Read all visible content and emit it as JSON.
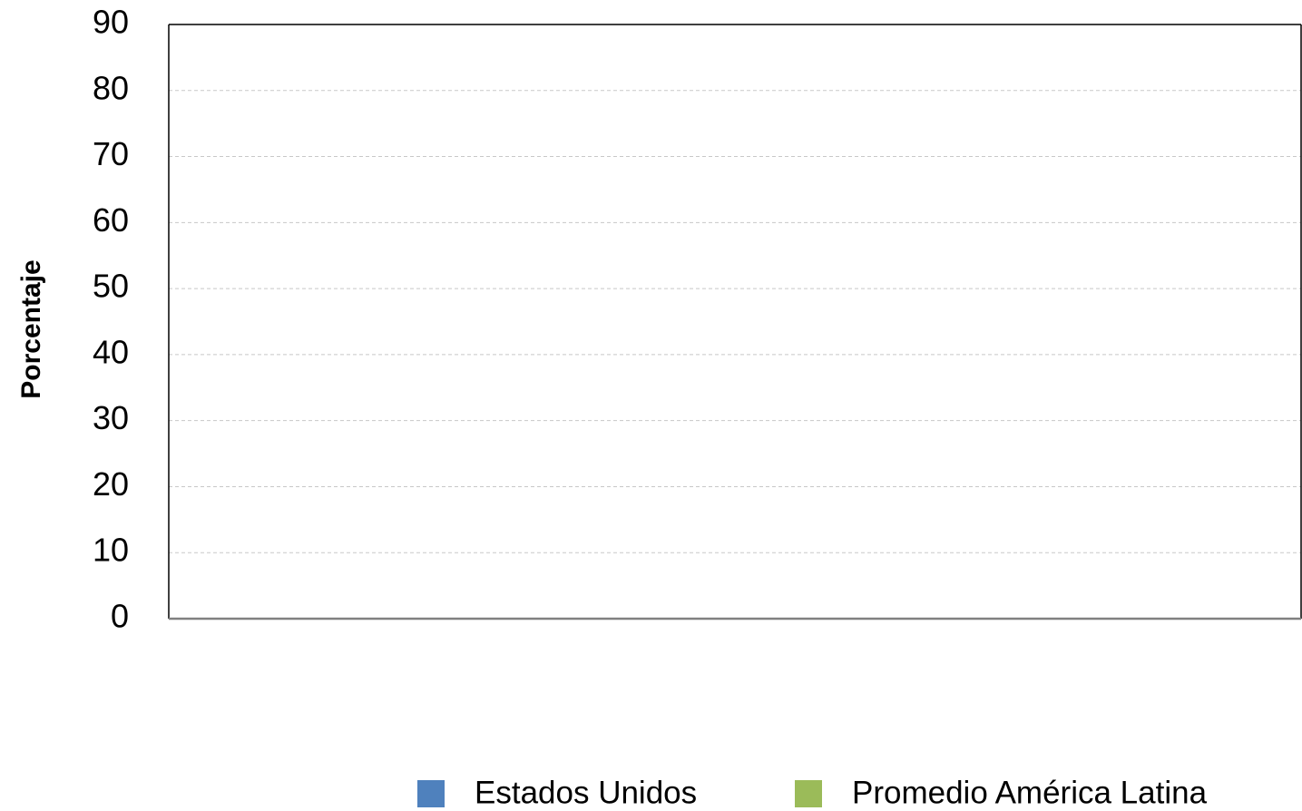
{
  "chart_data": {
    "type": "bar",
    "y_label": "Porcentaje",
    "categories": [],
    "series": [
      {
        "name": "Estados Unidos",
        "color": "#4f81bd",
        "values": []
      },
      {
        "name": "Promedio América Latina",
        "color": "#9bbb59",
        "values": []
      }
    ],
    "ylim": [
      0,
      90
    ],
    "yticks": [
      0,
      10,
      20,
      30,
      40,
      50,
      60,
      70,
      80,
      90
    ],
    "grid": true,
    "legend": "bottom"
  }
}
